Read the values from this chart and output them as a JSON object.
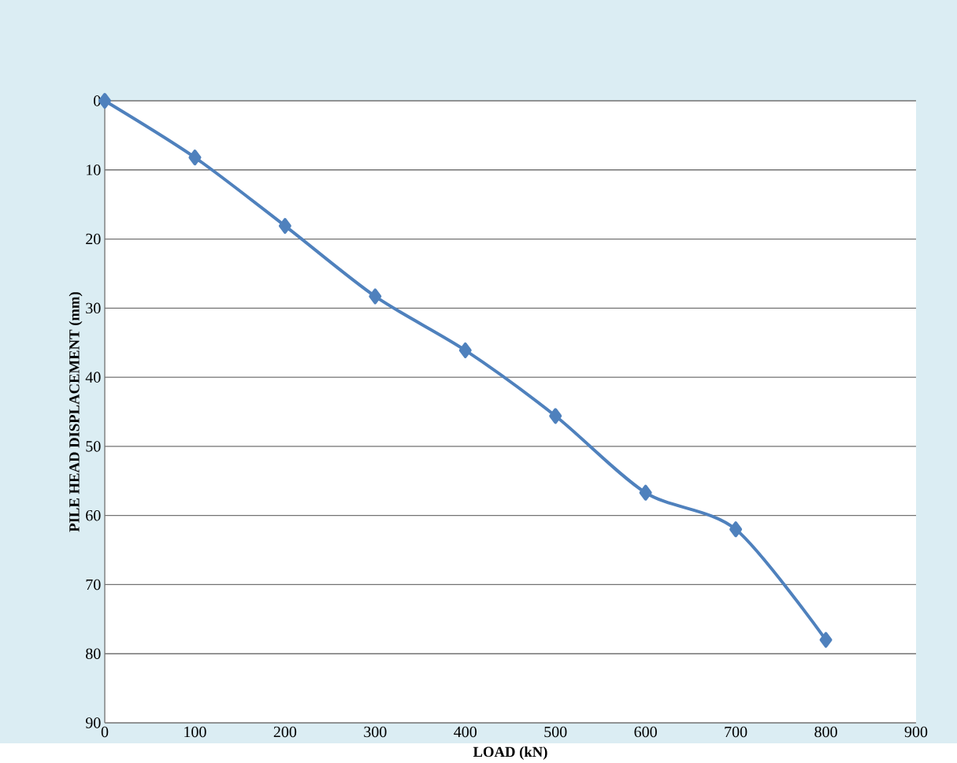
{
  "chart_data": {
    "type": "line",
    "xlabel": "LOAD (kN)",
    "ylabel": "PILE HEAD DISPLACEMENT (mm)",
    "x": [
      0,
      100,
      200,
      300,
      400,
      500,
      600,
      700,
      800
    ],
    "series": [
      {
        "color": "#4f81bd",
        "values": [
          0,
          8.2,
          18.1,
          28.3,
          36.1,
          45.6,
          56.7,
          62.0,
          78.0
        ]
      }
    ],
    "xlim": [
      0,
      900
    ],
    "ylim": [
      90,
      0
    ],
    "xticks": [
      0,
      100,
      200,
      300,
      400,
      500,
      600,
      700,
      800,
      900
    ],
    "yticks": [
      0,
      10,
      20,
      30,
      40,
      50,
      60,
      70,
      80,
      90
    ],
    "grid": "y",
    "marker": "diamond",
    "line_style": "solid"
  }
}
